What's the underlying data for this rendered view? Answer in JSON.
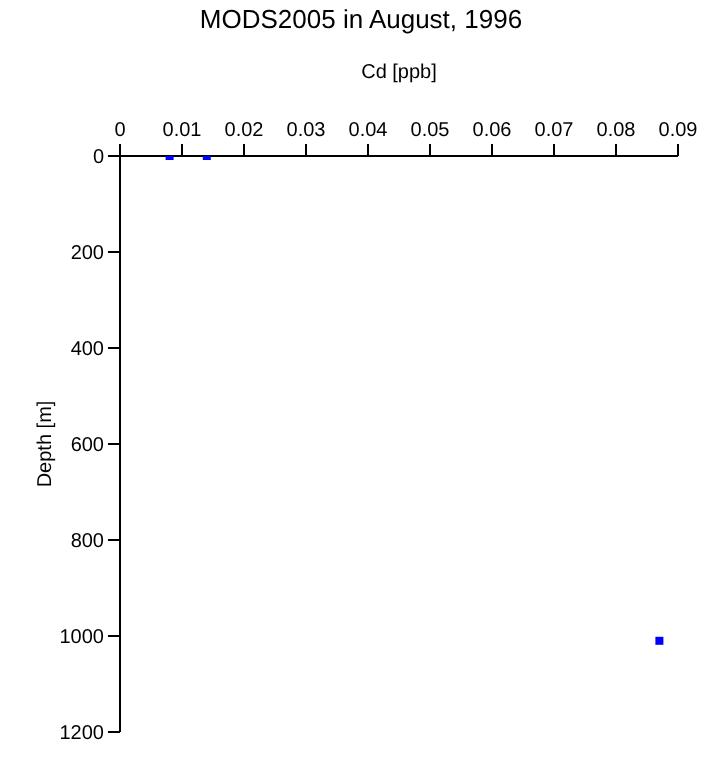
{
  "chart_data": {
    "type": "scatter",
    "title": "MODS2005 in August, 1996",
    "xlabel": "Cd [ppb]",
    "ylabel": "Depth [m]",
    "x": [
      0.008,
      0.014,
      0.087
    ],
    "series": [
      {
        "color": "#0000ff",
        "values": [
          0,
          0,
          1010
        ]
      }
    ],
    "xlim": [
      0,
      0.09
    ],
    "xticks": [
      0,
      0.01,
      0.02,
      0.03,
      0.04,
      0.05,
      0.06,
      0.07,
      0.08,
      0.09
    ],
    "ylim": [
      1200,
      0
    ],
    "yticks": [
      0,
      200,
      400,
      600,
      800,
      1000,
      1200
    ],
    "grid": false,
    "legend": false,
    "marker": "square"
  }
}
